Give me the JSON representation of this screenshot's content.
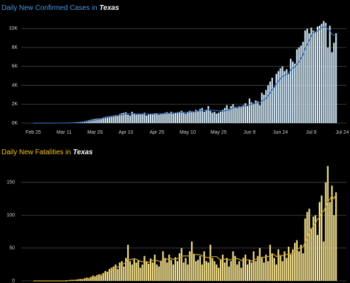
{
  "chart_data": [
    {
      "type": "bar",
      "title": "Daily New Confirmed Cases in",
      "title_state": "Texas",
      "title_color": "#4f95df",
      "color": "#cfe6f6",
      "categories": [
        "Feb 25",
        null,
        null,
        null,
        null,
        null,
        null,
        null,
        null,
        null,
        null,
        null,
        null,
        null,
        null,
        "Mar 11",
        null,
        null,
        null,
        null,
        null,
        null,
        null,
        null,
        null,
        null,
        null,
        null,
        null,
        null,
        "Mar 26",
        null,
        null,
        null,
        null,
        null,
        null,
        null,
        null,
        null,
        null,
        null,
        null,
        null,
        null,
        "Apr 10",
        null,
        null,
        null,
        null,
        null,
        null,
        null,
        null,
        null,
        null,
        null,
        null,
        null,
        null,
        "Apr 25",
        null,
        null,
        null,
        null,
        null,
        null,
        null,
        null,
        null,
        null,
        null,
        null,
        null,
        null,
        "May 10",
        null,
        null,
        null,
        null,
        null,
        null,
        null,
        null,
        null,
        null,
        null,
        null,
        null,
        null,
        "May 25",
        null,
        null,
        null,
        null,
        null,
        null,
        null,
        null,
        null,
        null,
        null,
        null,
        null,
        null,
        "Jun 9",
        null,
        null,
        null,
        null,
        null,
        null,
        null,
        null,
        null,
        null,
        null,
        null,
        null,
        null,
        "Jun 24",
        null,
        null,
        null,
        null,
        null,
        null,
        null,
        null,
        null,
        null,
        null,
        null,
        null,
        null,
        "Jul 9",
        null,
        null,
        null,
        null,
        null,
        null,
        null,
        null,
        null,
        null,
        null,
        null,
        null,
        null,
        "Jul 24"
      ],
      "values": [
        0,
        0,
        0,
        0,
        0,
        0,
        0,
        0,
        2,
        3,
        5,
        5,
        10,
        15,
        20,
        25,
        30,
        40,
        50,
        60,
        70,
        90,
        110,
        130,
        160,
        200,
        250,
        300,
        350,
        400,
        450,
        480,
        500,
        520,
        600,
        650,
        700,
        720,
        760,
        800,
        850,
        800,
        950,
        1050,
        1100,
        1150,
        900,
        800,
        1200,
        1000,
        900,
        1000,
        950,
        1000,
        1100,
        800,
        900,
        1000,
        950,
        1050,
        1050,
        900,
        950,
        1000,
        1100,
        1150,
        1050,
        1200,
        1000,
        1100,
        1150,
        1200,
        1300,
        1100,
        1000,
        1200,
        1300,
        1250,
        1150,
        1400,
        1300,
        1500,
        1600,
        1200,
        1400,
        1800,
        1300,
        1100,
        1200,
        1000,
        1100,
        1200,
        1400,
        1600,
        1900,
        1500,
        1800,
        2000,
        1700,
        1600,
        1800,
        1700,
        1900,
        2100,
        1800,
        2600,
        2200,
        2000,
        2400,
        2300,
        1900,
        3200,
        3000,
        3500,
        4000,
        4400,
        4800,
        3800,
        5200,
        5500,
        5800,
        6000,
        5500,
        5700,
        5200,
        6800,
        6500,
        6300,
        7800,
        8000,
        8200,
        8600,
        9800,
        10000,
        9500,
        10100,
        9800,
        9600,
        10200,
        10300,
        10500,
        10800,
        10600,
        8000,
        10300,
        7500,
        8500,
        9500,
        null,
        null,
        null
      ],
      "average": {
        "color": "#2a66b8",
        "values": [
          0,
          0,
          0,
          0,
          0,
          0,
          0,
          0,
          1,
          1,
          2,
          3,
          5,
          8,
          11,
          15,
          20,
          26,
          33,
          41,
          51,
          63,
          77,
          93,
          113,
          137,
          166,
          199,
          237,
          280,
          325,
          370,
          415,
          460,
          510,
          560,
          610,
          650,
          690,
          730,
          770,
          800,
          840,
          890,
          940,
          990,
          990,
          990,
          1000,
          1000,
          980,
          970,
          960,
          960,
          970,
          960,
          960,
          960,
          960,
          970,
          990,
          990,
          990,
          1000,
          1010,
          1030,
          1040,
          1060,
          1070,
          1090,
          1100,
          1120,
          1150,
          1150,
          1140,
          1160,
          1190,
          1200,
          1200,
          1230,
          1270,
          1310,
          1340,
          1340,
          1380,
          1420,
          1390,
          1370,
          1350,
          1330,
          1300,
          1260,
          1250,
          1290,
          1360,
          1390,
          1480,
          1600,
          1670,
          1700,
          1730,
          1740,
          1780,
          1830,
          1870,
          1950,
          2010,
          2040,
          2120,
          2160,
          2170,
          2340,
          2460,
          2630,
          2900,
          3190,
          3540,
          3810,
          4130,
          4450,
          4700,
          4940,
          5050,
          5170,
          5300,
          5630,
          5860,
          5920,
          6210,
          6470,
          6850,
          7240,
          7890,
          8300,
          8760,
          9220,
          9640,
          9660,
          9760,
          9920,
          10130,
          10160,
          10200,
          9900,
          9800,
          9400,
          9300,
          9200,
          null,
          null,
          null
        ]
      },
      "ylim": [
        0,
        11000
      ],
      "yticks": [
        {
          "value": 0,
          "label": "0K"
        },
        {
          "value": 2000,
          "label": "2K"
        },
        {
          "value": 4000,
          "label": "4K"
        },
        {
          "value": 6000,
          "label": "6K"
        },
        {
          "value": 8000,
          "label": "8K"
        },
        {
          "value": 10000,
          "label": "10K"
        }
      ],
      "grid": true
    },
    {
      "type": "bar",
      "title": "Daily New Fatalities in",
      "title_state": "Texas",
      "title_color": "#f2c21e",
      "color": "#f3e08c",
      "values": [
        0,
        0,
        0,
        0,
        0,
        0,
        0,
        0,
        0,
        0,
        0,
        0,
        0,
        0,
        0,
        0,
        1,
        0,
        1,
        1,
        1,
        2,
        2,
        3,
        2,
        4,
        5,
        3,
        6,
        8,
        7,
        9,
        10,
        8,
        12,
        15,
        14,
        18,
        20,
        22,
        25,
        18,
        28,
        30,
        22,
        35,
        55,
        30,
        25,
        33,
        28,
        32,
        20,
        25,
        38,
        30,
        26,
        34,
        28,
        40,
        25,
        22,
        30,
        45,
        35,
        28,
        40,
        32,
        25,
        36,
        30,
        42,
        50,
        28,
        35,
        25,
        45,
        60,
        40,
        30,
        32,
        38,
        25,
        45,
        30,
        28,
        55,
        35,
        30,
        25,
        20,
        32,
        40,
        28,
        35,
        22,
        30,
        45,
        38,
        25,
        30,
        20,
        35,
        40,
        25,
        32,
        28,
        45,
        30,
        38,
        50,
        35,
        28,
        40,
        30,
        55,
        42,
        35,
        25,
        48,
        38,
        30,
        45,
        35,
        52,
        40,
        48,
        58,
        62,
        45,
        55,
        42,
        95,
        105,
        110,
        80,
        98,
        100,
        70,
        120,
        130,
        60,
        150,
        175,
        120,
        145,
        100,
        135,
        null,
        null,
        null
      ],
      "average": {
        "color": "#d6a62a",
        "values": [
          0,
          0,
          0,
          0,
          0,
          0,
          0,
          0,
          0,
          0,
          0,
          0,
          0,
          0,
          0,
          0,
          0,
          0,
          1,
          1,
          1,
          1,
          2,
          2,
          2,
          3,
          3,
          4,
          4,
          5,
          6,
          7,
          8,
          9,
          10,
          11,
          12,
          14,
          16,
          18,
          20,
          21,
          23,
          25,
          26,
          28,
          33,
          32,
          33,
          34,
          33,
          31,
          30,
          29,
          30,
          29,
          28,
          30,
          31,
          32,
          31,
          30,
          30,
          31,
          32,
          33,
          34,
          34,
          33,
          33,
          34,
          35,
          37,
          38,
          38,
          38,
          38,
          40,
          41,
          40,
          40,
          40,
          38,
          37,
          36,
          35,
          37,
          37,
          37,
          37,
          34,
          32,
          33,
          33,
          33,
          32,
          32,
          33,
          34,
          34,
          33,
          31,
          31,
          32,
          32,
          32,
          30,
          32,
          33,
          34,
          36,
          36,
          36,
          37,
          37,
          38,
          40,
          40,
          37,
          39,
          39,
          38,
          40,
          40,
          41,
          41,
          43,
          45,
          48,
          50,
          51,
          52,
          59,
          66,
          75,
          79,
          83,
          88,
          94,
          97,
          104,
          106,
          113,
          121,
          124,
          130,
          125,
          132,
          null,
          null,
          null
        ]
      },
      "ylim": [
        0,
        180
      ],
      "yticks": [
        0,
        50,
        100,
        150
      ],
      "grid": true
    }
  ]
}
